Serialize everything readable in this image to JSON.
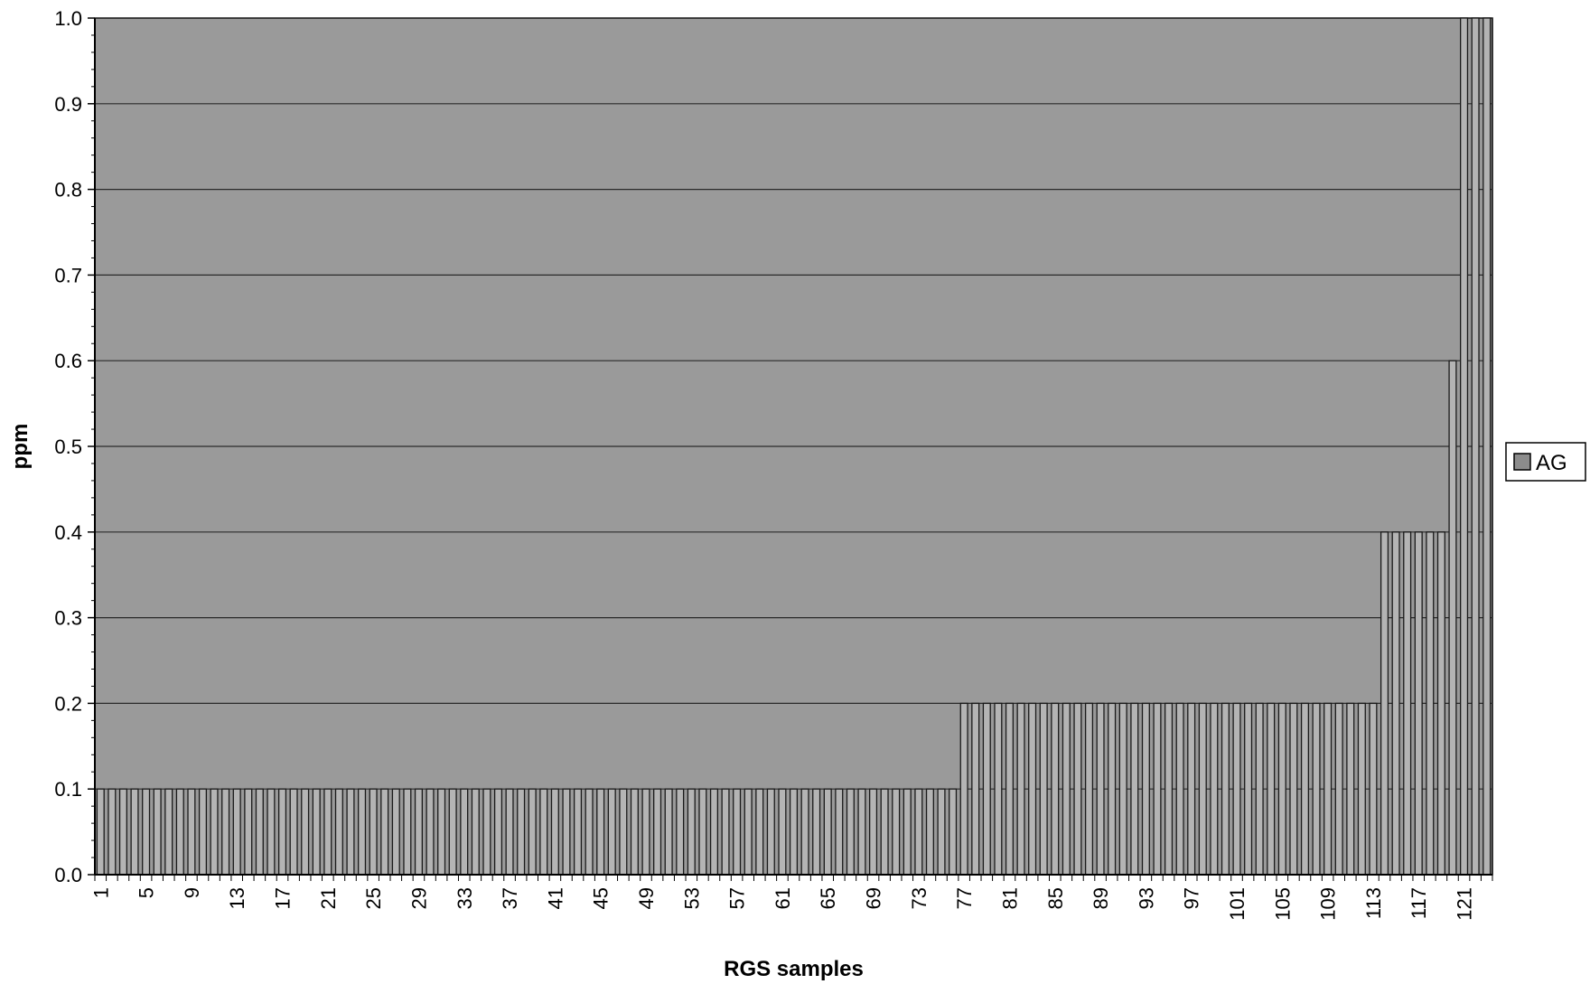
{
  "chart_data": {
    "type": "bar",
    "categories": [
      1,
      2,
      3,
      4,
      5,
      6,
      7,
      8,
      9,
      10,
      11,
      12,
      13,
      14,
      15,
      16,
      17,
      18,
      19,
      20,
      21,
      22,
      23,
      24,
      25,
      26,
      27,
      28,
      29,
      30,
      31,
      32,
      33,
      34,
      35,
      36,
      37,
      38,
      39,
      40,
      41,
      42,
      43,
      44,
      45,
      46,
      47,
      48,
      49,
      50,
      51,
      52,
      53,
      54,
      55,
      56,
      57,
      58,
      59,
      60,
      61,
      62,
      63,
      64,
      65,
      66,
      67,
      68,
      69,
      70,
      71,
      72,
      73,
      74,
      75,
      76,
      77,
      78,
      79,
      80,
      81,
      82,
      83,
      84,
      85,
      86,
      87,
      88,
      89,
      90,
      91,
      92,
      93,
      94,
      95,
      96,
      97,
      98,
      99,
      100,
      101,
      102,
      103,
      104,
      105,
      106,
      107,
      108,
      109,
      110,
      111,
      112,
      113,
      114,
      115,
      116,
      117,
      118,
      119,
      120,
      121,
      122,
      123
    ],
    "tick_labels": [
      "1",
      "5",
      "9",
      "13",
      "17",
      "21",
      "25",
      "29",
      "33",
      "37",
      "41",
      "45",
      "49",
      "53",
      "57",
      "61",
      "65",
      "69",
      "73",
      "77",
      "81",
      "85",
      "89",
      "93",
      "97",
      "101",
      "105",
      "109",
      "113",
      "117",
      "121"
    ],
    "series": [
      {
        "name": "AG",
        "values": [
          0.1,
          0.1,
          0.1,
          0.1,
          0.1,
          0.1,
          0.1,
          0.1,
          0.1,
          0.1,
          0.1,
          0.1,
          0.1,
          0.1,
          0.1,
          0.1,
          0.1,
          0.1,
          0.1,
          0.1,
          0.1,
          0.1,
          0.1,
          0.1,
          0.1,
          0.1,
          0.1,
          0.1,
          0.1,
          0.1,
          0.1,
          0.1,
          0.1,
          0.1,
          0.1,
          0.1,
          0.1,
          0.1,
          0.1,
          0.1,
          0.1,
          0.1,
          0.1,
          0.1,
          0.1,
          0.1,
          0.1,
          0.1,
          0.1,
          0.1,
          0.1,
          0.1,
          0.1,
          0.1,
          0.1,
          0.1,
          0.1,
          0.1,
          0.1,
          0.1,
          0.1,
          0.1,
          0.1,
          0.1,
          0.1,
          0.1,
          0.1,
          0.1,
          0.1,
          0.1,
          0.1,
          0.1,
          0.1,
          0.1,
          0.1,
          0.1,
          0.2,
          0.2,
          0.2,
          0.2,
          0.2,
          0.2,
          0.2,
          0.2,
          0.2,
          0.2,
          0.2,
          0.2,
          0.2,
          0.2,
          0.2,
          0.2,
          0.2,
          0.2,
          0.2,
          0.2,
          0.2,
          0.2,
          0.2,
          0.2,
          0.2,
          0.2,
          0.2,
          0.2,
          0.2,
          0.2,
          0.2,
          0.2,
          0.2,
          0.2,
          0.2,
          0.2,
          0.2,
          0.4,
          0.4,
          0.4,
          0.4,
          0.4,
          0.4,
          0.6,
          1.0,
          1.0,
          1.0
        ]
      }
    ],
    "title": "",
    "xlabel": "RGS samples",
    "ylabel": "ppm",
    "ylim": [
      0,
      1.0
    ],
    "yticks": [
      "0.0",
      "0.1",
      "0.2",
      "0.3",
      "0.4",
      "0.5",
      "0.6",
      "0.7",
      "0.8",
      "0.9",
      "1.0"
    ],
    "grid": "horizontal",
    "legend_position": "right",
    "colors": {
      "plot_background": "#9a9a9a",
      "bar_fill": "#b4b4b4",
      "bar_stroke": "#1a1a1a",
      "gridline": "#2a2a2a",
      "legend_swatch": "#8c8c8c"
    }
  }
}
